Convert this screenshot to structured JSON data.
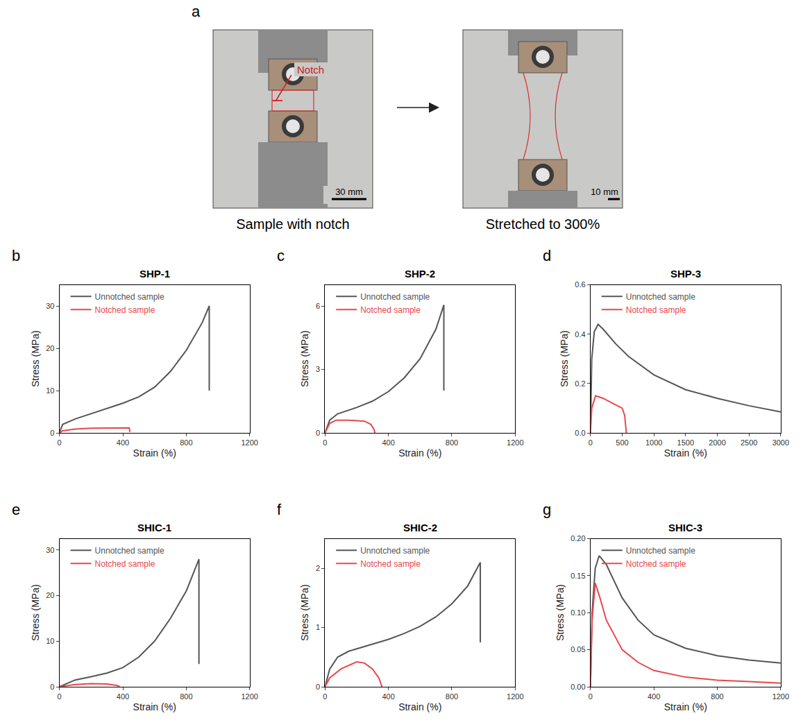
{
  "panel_a": {
    "label": "a",
    "left": {
      "caption": "Sample with notch",
      "annotation": "Notch",
      "scale_bar": "30 mm"
    },
    "right": {
      "caption": "Stretched to 300%",
      "scale_bar": "10 mm"
    }
  },
  "chart_data": [
    {
      "type": "line",
      "label": "b",
      "title": "SHP-1",
      "x_label": "Strain (%)",
      "y_label": "Stress (MPa)",
      "xlim": [
        0,
        1200
      ],
      "xticks": [
        0,
        400,
        800,
        1200
      ],
      "ylim": [
        0,
        35
      ],
      "yticks": [
        0,
        10,
        20,
        30
      ],
      "legend": "upper left",
      "grid": false,
      "series": [
        {
          "name": "Unnotched sample",
          "color": "#555555",
          "x": [
            0,
            20,
            100,
            200,
            300,
            400,
            500,
            600,
            700,
            800,
            900,
            945,
            945
          ],
          "values": [
            0,
            2,
            3.3,
            4.5,
            5.7,
            7,
            8.5,
            10.8,
            14.5,
            19.5,
            26,
            30,
            10
          ]
        },
        {
          "name": "Notched sample",
          "color": "#e8474c",
          "x": [
            0,
            20,
            100,
            200,
            300,
            400,
            440,
            445
          ],
          "values": [
            0,
            0.5,
            0.9,
            1.1,
            1.15,
            1.2,
            1.2,
            0.2
          ]
        }
      ]
    },
    {
      "type": "line",
      "label": "c",
      "title": "SHP-2",
      "x_label": "Strain (%)",
      "y_label": "Stress (MPa)",
      "xlim": [
        0,
        1200
      ],
      "xticks": [
        0,
        400,
        800,
        1200
      ],
      "ylim": [
        0,
        7
      ],
      "yticks": [
        0,
        3,
        6
      ],
      "legend": "upper left",
      "grid": false,
      "series": [
        {
          "name": "Unnotched sample",
          "color": "#555555",
          "x": [
            0,
            30,
            80,
            200,
            300,
            400,
            500,
            600,
            700,
            750,
            750
          ],
          "values": [
            0,
            0.6,
            0.9,
            1.2,
            1.5,
            1.95,
            2.6,
            3.5,
            4.9,
            6.05,
            2
          ]
        },
        {
          "name": "Notched sample",
          "color": "#e8474c",
          "x": [
            0,
            30,
            70,
            150,
            250,
            290,
            310,
            315
          ],
          "values": [
            0,
            0.45,
            0.6,
            0.6,
            0.55,
            0.4,
            0.15,
            0
          ]
        }
      ]
    },
    {
      "type": "line",
      "label": "d",
      "title": "SHP-3",
      "x_label": "Strain (%)",
      "y_label": "Stress (MPa)",
      "xlim": [
        0,
        3000
      ],
      "xticks": [
        0,
        500,
        1000,
        1500,
        2000,
        2500,
        3000
      ],
      "ylim": [
        0,
        0.6
      ],
      "yticks": [
        {
          "value": 0,
          "label": "0.0"
        },
        0.2,
        0.4,
        0.6
      ],
      "legend": "upper left",
      "grid": false,
      "series": [
        {
          "name": "Unnotched sample",
          "color": "#555555",
          "x": [
            0,
            20,
            60,
            120,
            200,
            400,
            600,
            1000,
            1500,
            2000,
            2500,
            3000
          ],
          "values": [
            0,
            0.3,
            0.41,
            0.44,
            0.42,
            0.36,
            0.31,
            0.235,
            0.175,
            0.14,
            0.11,
            0.085
          ]
        },
        {
          "name": "Notched sample",
          "color": "#e8474c",
          "x": [
            0,
            20,
            80,
            200,
            350,
            500,
            540,
            560,
            565
          ],
          "values": [
            0,
            0.1,
            0.15,
            0.14,
            0.12,
            0.1,
            0.07,
            0.02,
            0
          ]
        }
      ]
    },
    {
      "type": "line",
      "label": "e",
      "title": "SHIC-1",
      "x_label": "Strain (%)",
      "y_label": "Stress (MPa)",
      "xlim": [
        0,
        1200
      ],
      "xticks": [
        0,
        400,
        800,
        1200
      ],
      "ylim": [
        0,
        32.5
      ],
      "yticks": [
        0,
        10,
        20,
        30
      ],
      "legend": "upper left",
      "grid": false,
      "series": [
        {
          "name": "Unnotched sample",
          "color": "#555555",
          "x": [
            0,
            100,
            200,
            300,
            400,
            500,
            600,
            700,
            800,
            880,
            880
          ],
          "values": [
            0,
            1.5,
            2.2,
            3,
            4.2,
            6.5,
            10,
            15,
            21,
            28,
            5
          ]
        },
        {
          "name": "Notched sample",
          "color": "#e8474c",
          "x": [
            0,
            100,
            200,
            300,
            360,
            380
          ],
          "values": [
            0,
            0.5,
            0.7,
            0.6,
            0.3,
            0.1
          ]
        }
      ]
    },
    {
      "type": "line",
      "label": "f",
      "title": "SHIC-2",
      "x_label": "Strain (%)",
      "y_label": "Stress (MPa)",
      "xlim": [
        0,
        1200
      ],
      "xticks": [
        0,
        400,
        800,
        1200
      ],
      "ylim": [
        0,
        2.5
      ],
      "yticks": [
        0,
        1,
        2
      ],
      "legend": "upper left",
      "grid": false,
      "series": [
        {
          "name": "Unnotched sample",
          "color": "#555555",
          "x": [
            0,
            30,
            80,
            150,
            300,
            400,
            500,
            600,
            700,
            800,
            900,
            980,
            980
          ],
          "values": [
            0,
            0.3,
            0.5,
            0.6,
            0.72,
            0.8,
            0.9,
            1.02,
            1.18,
            1.4,
            1.7,
            2.1,
            0.75
          ]
        },
        {
          "name": "Notched sample",
          "color": "#e8474c",
          "x": [
            0,
            30,
            100,
            200,
            250,
            300,
            340,
            360
          ],
          "values": [
            0,
            0.15,
            0.3,
            0.42,
            0.4,
            0.3,
            0.15,
            0
          ]
        }
      ]
    },
    {
      "type": "line",
      "label": "g",
      "title": "SHIC-3",
      "x_label": "Strain (%)",
      "y_label": "Stress (MPa)",
      "xlim": [
        0,
        1200
      ],
      "xticks": [
        0,
        400,
        800,
        1200
      ],
      "ylim": [
        0,
        0.2
      ],
      "yticks": [
        {
          "value": 0,
          "label": "0.00"
        },
        {
          "value": 0.05,
          "label": "0.05"
        },
        {
          "value": 0.1,
          "label": "0.10"
        },
        {
          "value": 0.15,
          "label": "0.15"
        },
        {
          "value": 0.2,
          "label": "0.20"
        }
      ],
      "legend": "upper left",
      "grid": false,
      "series": [
        {
          "name": "Unnotched sample",
          "color": "#555555",
          "x": [
            0,
            10,
            30,
            55,
            100,
            200,
            300,
            400,
            600,
            800,
            1000,
            1200
          ],
          "values": [
            0,
            0.1,
            0.16,
            0.177,
            0.165,
            0.12,
            0.09,
            0.07,
            0.052,
            0.042,
            0.036,
            0.032
          ]
        },
        {
          "name": "Notched sample",
          "color": "#e8474c",
          "x": [
            0,
            10,
            30,
            60,
            100,
            200,
            300,
            400,
            600,
            800,
            1000,
            1200
          ],
          "values": [
            0,
            0.09,
            0.14,
            0.12,
            0.09,
            0.05,
            0.033,
            0.022,
            0.013,
            0.009,
            0.007,
            0.005
          ]
        }
      ]
    }
  ]
}
